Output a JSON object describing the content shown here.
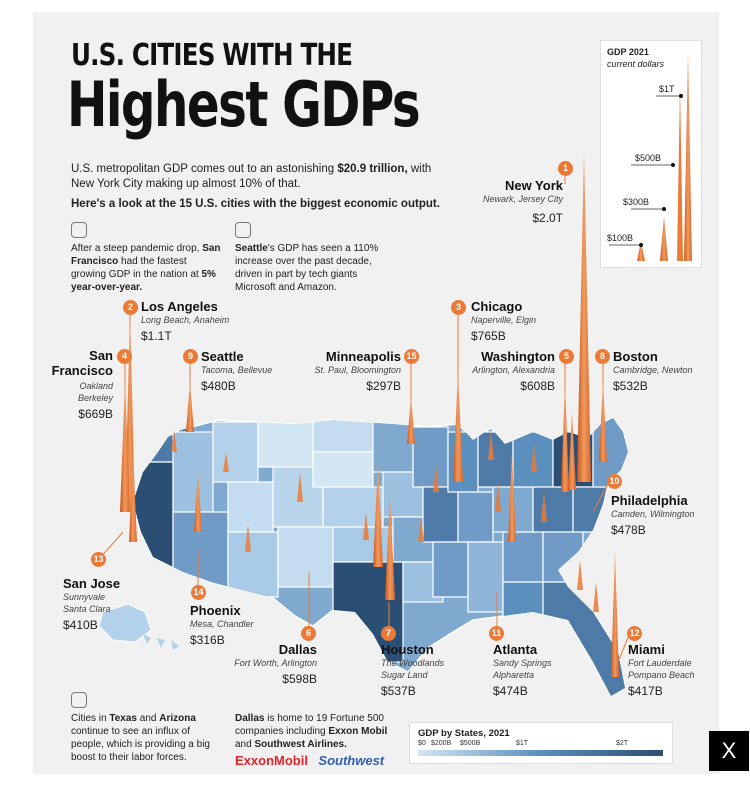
{
  "title_line1": "U.S. CITIES WITH THE",
  "title_line2": "Highest GDPs",
  "intro_pre": "U.S. metropolitan GDP comes out to an astonishing ",
  "intro_total": "$20.9 trillion,",
  "intro_post": " with New York City making up almost 10% of that.",
  "intro_line2": "Here's a look at the 15 U.S. cities with the biggest economic output.",
  "note_sf": {
    "pre": "After a steep pandemic drop, ",
    "city": "San Francisco",
    "mid": " had the fastest growing GDP in the nation at ",
    "rate": "5% year-over-year."
  },
  "note_seattle": {
    "city": "Seattle",
    "text": "'s GDP has seen a 110% increase over the past decade, driven in part by tech giants Microsoft and Amazon."
  },
  "note_texas": {
    "pre": "Cities in ",
    "s1": "Texas",
    "and": " and ",
    "s2": "Arizona",
    "post": " continue to see an influx of people, which is providing a big boost to their labor forces."
  },
  "note_dallas": {
    "city": "Dallas",
    "mid": " is home to 19 Fortune 500 companies including ",
    "c1": "Exxon Mobil",
    "and": " and ",
    "c2": "Southwest Airlines."
  },
  "brands": {
    "exxon": "ExxonMobil",
    "southwest": "Southwest"
  },
  "reference": {
    "title": "GDP 2021",
    "subtitle": "current dollars",
    "levels": [
      "$1T",
      "$500B",
      "$300B",
      "$100B"
    ]
  },
  "legend": {
    "title": "GDP by States, 2021",
    "ticks": [
      "$0",
      "$200B",
      "$500B",
      "$1T",
      "$2T"
    ]
  },
  "colors": {
    "accent": "#ec7a36",
    "state_light": "#c4dcef",
    "state_dark": "#2b4f74",
    "background": "#f1f1f1"
  },
  "close_label": "X",
  "cities": [
    {
      "rank": "1",
      "name": "New York",
      "sub1": "Newark, Jersey City",
      "sub2": "",
      "gdp": "$2.0T"
    },
    {
      "rank": "2",
      "name": "Los Angeles",
      "sub1": "Long Beach, Anaheim",
      "sub2": "",
      "gdp": "$1.1T"
    },
    {
      "rank": "3",
      "name": "Chicago",
      "sub1": "Naperville, Elgin",
      "sub2": "",
      "gdp": "$765B"
    },
    {
      "rank": "4",
      "name": "San",
      "name2": "Francisco",
      "sub1": "Oakland",
      "sub2": "Berkeley",
      "gdp": "$669B"
    },
    {
      "rank": "5",
      "name": "Washington",
      "sub1": "Arlington, Alexandria",
      "sub2": "",
      "gdp": "$608B"
    },
    {
      "rank": "6",
      "name": "Dallas",
      "sub1": "Fort Worth, Arlington",
      "sub2": "",
      "gdp": "$598B"
    },
    {
      "rank": "7",
      "name": "Houston",
      "sub1": "The Woodlands",
      "sub2": "Sugar Land",
      "gdp": "$537B"
    },
    {
      "rank": "8",
      "name": "Boston",
      "sub1": "Cambridge, Newton",
      "sub2": "",
      "gdp": "$532B"
    },
    {
      "rank": "9",
      "name": "Seattle",
      "sub1": "Tacoma, Bellevue",
      "sub2": "",
      "gdp": "$480B"
    },
    {
      "rank": "10",
      "name": "Philadelphia",
      "sub1": "Camden, Wilmington",
      "sub2": "",
      "gdp": "$478B"
    },
    {
      "rank": "11",
      "name": "Atlanta",
      "sub1": "Sandy Springs",
      "sub2": "Alpharetta",
      "gdp": "$474B"
    },
    {
      "rank": "12",
      "name": "Miami",
      "sub1": "Fort Lauderdale",
      "sub2": "Pompano Beach",
      "gdp": "$417B"
    },
    {
      "rank": "13",
      "name": "San Jose",
      "sub1": "Sunnyvale",
      "sub2": "Santa Clara",
      "gdp": "$410B"
    },
    {
      "rank": "14",
      "name": "Phoenix",
      "sub1": "Mesa, Chandler",
      "sub2": "",
      "gdp": "$316B"
    },
    {
      "rank": "15",
      "name": "Minneapolis",
      "sub1": "St. Paul, Bloomington",
      "sub2": "",
      "gdp": "$297B"
    }
  ]
}
